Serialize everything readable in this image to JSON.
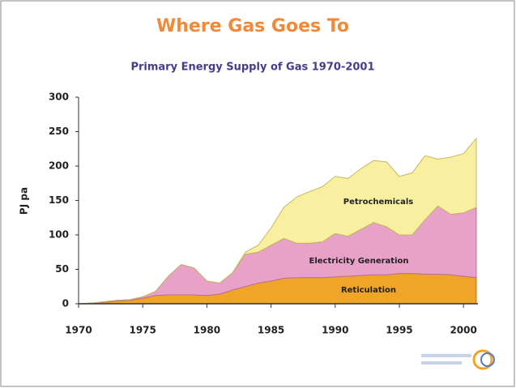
{
  "chart_data": {
    "type": "stacked_area",
    "title": "Where Gas Goes To",
    "subtitle": "Primary Energy Supply of Gas 1970-2001",
    "y_label": "PJ pa",
    "x": [
      1970,
      1971,
      1972,
      1973,
      1974,
      1975,
      1976,
      1977,
      1978,
      1979,
      1980,
      1981,
      1982,
      1983,
      1984,
      1985,
      1986,
      1987,
      1988,
      1989,
      1990,
      1991,
      1992,
      1993,
      1994,
      1995,
      1996,
      1997,
      1998,
      1999,
      2000,
      2001
    ],
    "series": [
      {
        "name": "Reticulation",
        "color": "#f0a428",
        "values": [
          0,
          1,
          2,
          4,
          5,
          8,
          12,
          13,
          13,
          13,
          12,
          14,
          20,
          25,
          30,
          33,
          37,
          38,
          38,
          38,
          39,
          40,
          41,
          42,
          42,
          44,
          44,
          43,
          43,
          42,
          40,
          38
        ]
      },
      {
        "name": "Electricity Generation",
        "color": "#e8a2c8",
        "values": [
          0,
          0,
          1,
          1,
          1,
          2,
          6,
          27,
          44,
          39,
          21,
          16,
          25,
          47,
          45,
          52,
          58,
          50,
          50,
          52,
          63,
          58,
          67,
          76,
          70,
          56,
          56,
          79,
          99,
          88,
          92,
          102
        ]
      },
      {
        "name": "Petrochemicals",
        "color": "#f8f0a0",
        "values": [
          0,
          0,
          0,
          0,
          0,
          0,
          0,
          0,
          0,
          0,
          0,
          0,
          0,
          3,
          10,
          25,
          45,
          67,
          75,
          80,
          83,
          84,
          88,
          90,
          94,
          85,
          90,
          93,
          68,
          83,
          86,
          100
        ]
      }
    ],
    "xlim": [
      1970,
      2001
    ],
    "xticks": [
      1970,
      1975,
      1980,
      1985,
      1990,
      1995,
      2000
    ],
    "ylim": [
      0,
      300
    ],
    "yticks": [
      0,
      50,
      100,
      150,
      200,
      250,
      300
    ]
  }
}
